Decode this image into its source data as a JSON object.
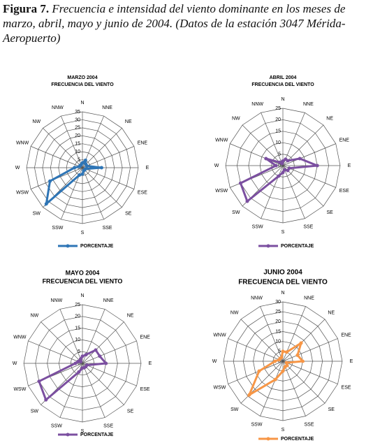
{
  "figure_caption": {
    "label": "Figura 7.",
    "text": "Frecuencia e intensidad del viento dominante en los meses de marzo, abril, mayo y junio de 2004. (Datos de la estación 3047 Mérida-Aeropuerto)"
  },
  "chart_data": [
    {
      "type": "radar",
      "title": "MARZO 2004",
      "subtitle": "FRECUENCIA DEL VIENTO",
      "categories": [
        "N",
        "NNE",
        "NE",
        "ENE",
        "E",
        "ESE",
        "SE",
        "SSE",
        "S",
        "SSW",
        "SW",
        "WSW",
        "W",
        "WNW",
        "NW",
        "NNW"
      ],
      "rlim": [
        0,
        35
      ],
      "rticks": [
        0,
        5,
        10,
        15,
        20,
        25,
        30,
        35
      ],
      "series": [
        {
          "name": "PORCENTAJE",
          "color": "#2e75b6",
          "values": [
            3,
            5,
            3,
            3,
            12,
            2,
            2,
            2,
            4,
            5,
            32,
            22,
            5,
            2,
            2,
            2
          ]
        }
      ]
    },
    {
      "type": "radar",
      "title": "ABRIL 2004",
      "subtitle": "FRECUENCIA DEL VIENTO",
      "categories": [
        "N",
        "NNE",
        "NE",
        "ENE",
        "E",
        "ESE",
        "SE",
        "SSE",
        "S",
        "SSW",
        "SW",
        "WSW",
        "W",
        "WNW",
        "NW",
        "NNW"
      ],
      "rlim": [
        0,
        25
      ],
      "rticks": [
        0,
        5,
        10,
        15,
        20,
        25
      ],
      "series": [
        {
          "name": "PORCENTAJE",
          "color": "#7b4fa0",
          "values": [
            2,
            3,
            3,
            8,
            15,
            3,
            3,
            2,
            3,
            5,
            22,
            20,
            3,
            8,
            2,
            1
          ]
        }
      ]
    },
    {
      "type": "radar",
      "title": "MAYO 2004",
      "subtitle": "FRECUENCIA DEL VIENTO",
      "categories": [
        "N",
        "NNE",
        "NE",
        "ENE",
        "E",
        "ESE",
        "SE",
        "SSE",
        "S",
        "SSW",
        "SW",
        "WSW",
        "W",
        "WNW",
        "NW",
        "NNW"
      ],
      "rlim": [
        0,
        25
      ],
      "rticks": [
        0,
        5,
        10,
        15,
        20,
        25
      ],
      "series": [
        {
          "name": "PORCENTAJE",
          "color": "#7b4fa0",
          "values": [
            3,
            4,
            8,
            8,
            10,
            2,
            2,
            2,
            2,
            4,
            22,
            20,
            3,
            2,
            1,
            2
          ]
        }
      ]
    },
    {
      "type": "radar",
      "title": "JUNIO 2004",
      "subtitle": "FRECUENCIA DEL VIENTO",
      "categories": [
        "N",
        "NNE",
        "NE",
        "ENE",
        "E",
        "ESE",
        "SE",
        "SSE",
        "S",
        "SSW",
        "SW",
        "WSW",
        "W",
        "WNW",
        "NW",
        "NNW"
      ],
      "rlim": [
        0,
        30
      ],
      "rticks": [
        0,
        5,
        10,
        15,
        20,
        25,
        30
      ],
      "series": [
        {
          "name": "PORCENTAJE",
          "color": "#f79646",
          "values": [
            5,
            5,
            13,
            8,
            10,
            2,
            3,
            3,
            5,
            10,
            24,
            13,
            4,
            2,
            2,
            2
          ]
        }
      ]
    }
  ]
}
